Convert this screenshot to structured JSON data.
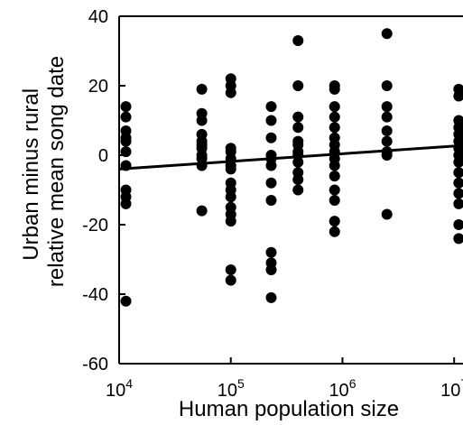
{
  "chart_data": {
    "type": "scatter",
    "title": "",
    "xlabel": "Human population size",
    "ylabel": [
      "Urban minus rural",
      "relative mean song date"
    ],
    "x_scale": "log",
    "xlim": [
      10000,
      12000000
    ],
    "ylim": [
      -60,
      40
    ],
    "x_ticks": [
      {
        "value": 10000,
        "base": "10",
        "exp": "4"
      },
      {
        "value": 100000,
        "base": "10",
        "exp": "5"
      },
      {
        "value": 1000000,
        "base": "10",
        "exp": "6"
      },
      {
        "value": 10000000,
        "base": "10",
        "exp": "7"
      }
    ],
    "y_ticks": [
      40,
      20,
      0,
      -20,
      -40,
      -60
    ],
    "grid": false,
    "legend": "none",
    "series": [
      {
        "type": "scatter",
        "points": [
          [
            11500,
            14
          ],
          [
            11500,
            11
          ],
          [
            11500,
            7
          ],
          [
            11500,
            5
          ],
          [
            11500,
            4
          ],
          [
            11500,
            1
          ],
          [
            11500,
            -3
          ],
          [
            11500,
            -10
          ],
          [
            11500,
            -12
          ],
          [
            11500,
            -14
          ],
          [
            11500,
            -42
          ],
          [
            55000,
            19
          ],
          [
            55000,
            12
          ],
          [
            55000,
            10
          ],
          [
            55000,
            6
          ],
          [
            55000,
            4
          ],
          [
            55000,
            3
          ],
          [
            55000,
            2
          ],
          [
            55000,
            0
          ],
          [
            55000,
            -1
          ],
          [
            55000,
            -3
          ],
          [
            55000,
            -16
          ],
          [
            100000,
            22
          ],
          [
            100000,
            20
          ],
          [
            100000,
            18
          ],
          [
            100000,
            2
          ],
          [
            100000,
            1
          ],
          [
            100000,
            -1
          ],
          [
            100000,
            -3
          ],
          [
            100000,
            -4
          ],
          [
            100000,
            -8
          ],
          [
            100000,
            -10
          ],
          [
            100000,
            -12
          ],
          [
            100000,
            -15
          ],
          [
            100000,
            -17
          ],
          [
            100000,
            -19
          ],
          [
            100000,
            -33
          ],
          [
            100000,
            -36
          ],
          [
            230000,
            14
          ],
          [
            230000,
            10
          ],
          [
            230000,
            5
          ],
          [
            230000,
            0
          ],
          [
            230000,
            -1
          ],
          [
            230000,
            -3
          ],
          [
            230000,
            -8
          ],
          [
            230000,
            -13
          ],
          [
            230000,
            -28
          ],
          [
            230000,
            -31
          ],
          [
            230000,
            -33
          ],
          [
            230000,
            -41
          ],
          [
            400000,
            33
          ],
          [
            400000,
            20
          ],
          [
            400000,
            11
          ],
          [
            400000,
            8
          ],
          [
            400000,
            4
          ],
          [
            400000,
            3
          ],
          [
            400000,
            1
          ],
          [
            400000,
            0
          ],
          [
            400000,
            -2
          ],
          [
            400000,
            -5
          ],
          [
            400000,
            -7
          ],
          [
            400000,
            -10
          ],
          [
            850000,
            20
          ],
          [
            850000,
            19
          ],
          [
            850000,
            14
          ],
          [
            850000,
            11
          ],
          [
            850000,
            8
          ],
          [
            850000,
            5
          ],
          [
            850000,
            3
          ],
          [
            850000,
            1
          ],
          [
            850000,
            -1
          ],
          [
            850000,
            -3
          ],
          [
            850000,
            -6
          ],
          [
            850000,
            -10
          ],
          [
            850000,
            -13
          ],
          [
            850000,
            -19
          ],
          [
            850000,
            -22
          ],
          [
            2500000,
            35
          ],
          [
            2500000,
            20
          ],
          [
            2500000,
            14
          ],
          [
            2500000,
            11
          ],
          [
            2500000,
            7
          ],
          [
            2500000,
            4
          ],
          [
            2500000,
            1
          ],
          [
            2500000,
            0
          ],
          [
            2500000,
            -17
          ],
          [
            11000000,
            19
          ],
          [
            11000000,
            17
          ],
          [
            11000000,
            10
          ],
          [
            11000000,
            8
          ],
          [
            11000000,
            6
          ],
          [
            11000000,
            4
          ],
          [
            11000000,
            2
          ],
          [
            11000000,
            0
          ],
          [
            11000000,
            -2
          ],
          [
            11000000,
            -5
          ],
          [
            11000000,
            -8
          ],
          [
            11000000,
            -11
          ],
          [
            11000000,
            -14
          ],
          [
            11000000,
            -20
          ],
          [
            11000000,
            -24
          ]
        ]
      },
      {
        "type": "line",
        "points": [
          [
            10000,
            -4
          ],
          [
            12000000,
            2.8
          ]
        ]
      }
    ],
    "colors": {
      "points": "#000000",
      "fit_line": "#000000",
      "axes": "#000000"
    }
  }
}
